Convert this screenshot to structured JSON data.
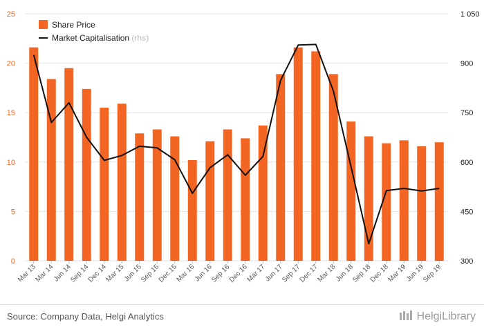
{
  "chart_data": {
    "type": "bar+line",
    "categories": [
      "Mar 13",
      "Mar 14",
      "Jun 14",
      "Sep 14",
      "Dec 14",
      "Mar 15",
      "Jun 15",
      "Sep 15",
      "Dec 15",
      "Mar 16",
      "Jun 16",
      "Sep 16",
      "Dec 16",
      "Mar 17",
      "Jun 17",
      "Sep 17",
      "Dec 17",
      "Mar 18",
      "Jun 18",
      "Sep 18",
      "Dec 18",
      "Mar 19",
      "Jun 19",
      "Sep 19"
    ],
    "series": [
      {
        "name": "Share Price",
        "type": "bar",
        "axis": "left",
        "color": "#f26522",
        "values": [
          21.6,
          18.4,
          19.5,
          17.4,
          15.5,
          15.9,
          12.9,
          13.3,
          12.6,
          10.2,
          12.1,
          13.3,
          12.4,
          13.7,
          18.9,
          21.6,
          21.2,
          18.9,
          14.1,
          12.6,
          11.9,
          12.2,
          11.6,
          12.0
        ]
      },
      {
        "name": "Market Capitalisation",
        "name_suffix": "(rhs)",
        "type": "line",
        "axis": "right",
        "color": "#111111",
        "values": [
          925,
          720,
          780,
          675,
          605,
          620,
          648,
          643,
          607,
          505,
          583,
          622,
          560,
          617,
          848,
          955,
          957,
          815,
          585,
          352,
          513,
          520,
          512,
          520
        ]
      }
    ],
    "y_left": {
      "range": [
        0,
        25
      ],
      "ticks": [
        "0",
        "5",
        "10",
        "15",
        "20",
        "25"
      ],
      "tick_values": [
        0,
        5,
        10,
        15,
        20,
        25
      ],
      "color": "#f26522"
    },
    "y_right": {
      "range": [
        300,
        1050
      ],
      "ticks": [
        "300",
        "450",
        "600",
        "750",
        "900",
        "1 050"
      ],
      "tick_values": [
        300,
        450,
        600,
        750,
        900,
        1050
      ],
      "color": "#222222"
    },
    "grid": true,
    "legend_position": "top-left"
  },
  "footer": {
    "source": "Source: Company Data, Helgi Analytics",
    "brand": "HelgiLibrary"
  }
}
